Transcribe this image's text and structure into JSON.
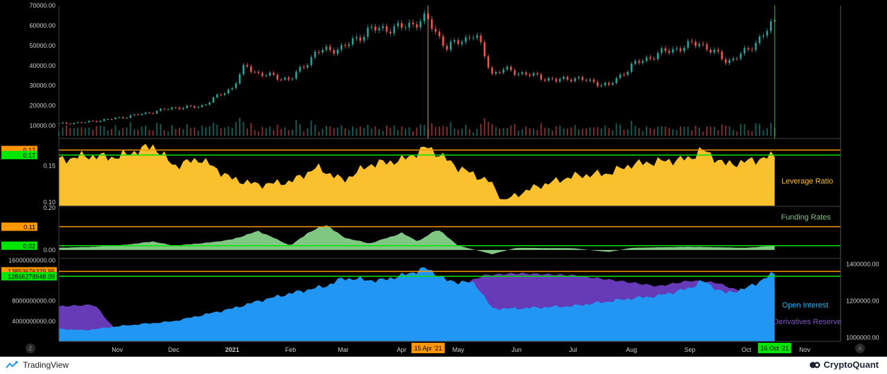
{
  "chart_data": {
    "type": "composite",
    "price_axis": {
      "ticks": [
        10000,
        20000,
        30000,
        40000,
        50000,
        60000,
        70000
      ],
      "tick_labels": [
        "10000.00",
        "20000.00",
        "30000.00",
        "40000.00",
        "50000.00",
        "60000.00",
        "70000.00"
      ],
      "range": [
        5000,
        70000
      ]
    },
    "price_series": {
      "type": "candlestick-approx",
      "dates": [
        "2020-10-01",
        "2020-10-15",
        "2020-11-01",
        "2020-11-15",
        "2020-12-01",
        "2020-12-15",
        "2021-01-01",
        "2021-01-08",
        "2021-01-15",
        "2021-02-01",
        "2021-02-15",
        "2021-03-01",
        "2021-03-15",
        "2021-04-01",
        "2021-04-14",
        "2021-04-25",
        "2021-05-10",
        "2021-05-19",
        "2021-05-25",
        "2021-06-10",
        "2021-06-22",
        "2021-07-01",
        "2021-07-20",
        "2021-08-01",
        "2021-08-15",
        "2021-09-06",
        "2021-09-21",
        "2021-10-01",
        "2021-10-16"
      ],
      "close": [
        11000,
        11700,
        13800,
        16000,
        19000,
        19500,
        29000,
        40000,
        36000,
        33000,
        47000,
        49000,
        58000,
        59000,
        63500,
        49000,
        56000,
        36000,
        38000,
        35000,
        32500,
        34000,
        30000,
        40000,
        46000,
        51500,
        42000,
        47000,
        61500
      ]
    },
    "leverage_ratio": {
      "label": "Leverage Ratio",
      "axis_ticks": [
        0.1,
        0.15
      ],
      "axis_tick_labels": [
        "0.10",
        "0.15"
      ],
      "range": [
        0.095,
        0.185
      ],
      "markers": [
        {
          "label": "0.17",
          "color": "#ff9800"
        },
        {
          "label": "0.17",
          "color": "#00e600"
        }
      ],
      "lines": [
        0.172,
        0.165
      ],
      "dates": [
        "2020-10-01",
        "2020-10-15",
        "2020-11-01",
        "2020-11-20",
        "2020-12-01",
        "2020-12-15",
        "2021-01-01",
        "2021-01-15",
        "2021-02-01",
        "2021-02-15",
        "2021-03-01",
        "2021-03-15",
        "2021-04-01",
        "2021-04-15",
        "2021-05-01",
        "2021-05-18",
        "2021-05-25",
        "2021-06-10",
        "2021-07-01",
        "2021-07-20",
        "2021-08-01",
        "2021-08-15",
        "2021-09-01",
        "2021-09-07",
        "2021-09-20",
        "2021-10-01",
        "2021-10-16"
      ],
      "values": [
        0.158,
        0.164,
        0.162,
        0.178,
        0.15,
        0.16,
        0.132,
        0.124,
        0.128,
        0.148,
        0.13,
        0.152,
        0.158,
        0.176,
        0.148,
        0.128,
        0.102,
        0.12,
        0.136,
        0.14,
        0.152,
        0.156,
        0.16,
        0.173,
        0.152,
        0.156,
        0.164
      ],
      "color": "#fbc02d"
    },
    "funding_rates": {
      "label": "Funding Rates",
      "axis_ticks": [
        0.0,
        0.2
      ],
      "axis_tick_labels": [
        "0.00",
        "0.20"
      ],
      "range": [
        -0.04,
        0.2
      ],
      "markers": [
        {
          "label": "0.11",
          "color": "#ff9800"
        },
        {
          "label": "0.02",
          "color": "#00e600"
        }
      ],
      "lines": [
        0.11,
        0.02
      ],
      "dates": [
        "2020-10-01",
        "2020-10-20",
        "2020-11-01",
        "2020-11-20",
        "2020-12-01",
        "2020-12-20",
        "2021-01-01",
        "2021-01-15",
        "2021-02-01",
        "2021-02-10",
        "2021-02-20",
        "2021-03-01",
        "2021-03-15",
        "2021-04-01",
        "2021-04-10",
        "2021-04-20",
        "2021-05-01",
        "2021-05-19",
        "2021-06-01",
        "2021-07-01",
        "2021-07-20",
        "2021-08-01",
        "2021-09-01",
        "2021-10-01",
        "2021-10-16"
      ],
      "values": [
        0.01,
        0.015,
        0.02,
        0.04,
        0.02,
        0.035,
        0.05,
        0.09,
        0.02,
        0.08,
        0.12,
        0.06,
        0.03,
        0.08,
        0.04,
        0.1,
        0.02,
        -0.02,
        0.01,
        0.008,
        -0.01,
        0.01,
        0.015,
        0.01,
        0.02
      ],
      "color": "#81c784"
    },
    "derivatives": {
      "left_axis_tick_labels": [
        "4000000000.00",
        "8000000000.00",
        "16000000000.00"
      ],
      "left_axis_ticks": [
        4000000000,
        8000000000,
        16000000000
      ],
      "left_range": [
        0,
        16000000000
      ],
      "right_axis_tick_labels": [
        "1000000.00",
        "1200000.00",
        "1400000.00"
      ],
      "right_axis_ticks": [
        1000000,
        1200000,
        1400000
      ],
      "right_range": [
        980000,
        1420000
      ],
      "markers": [
        {
          "label": "13853676329.95",
          "color": "#ff9800"
        },
        {
          "label": "12866278948.09",
          "color": "#00e600"
        }
      ],
      "lines": [
        13853676329.95,
        12866278948.09
      ],
      "series": [
        {
          "name": "Open Interest",
          "color": "#2196f3",
          "dates": [
            "2020-10-01",
            "2020-10-15",
            "2020-11-01",
            "2020-12-01",
            "2021-01-01",
            "2021-01-15",
            "2021-02-01",
            "2021-02-20",
            "2021-03-01",
            "2021-03-20",
            "2021-04-01",
            "2021-04-14",
            "2021-04-25",
            "2021-05-10",
            "2021-05-19",
            "2021-06-01",
            "2021-07-01",
            "2021-08-01",
            "2021-08-15",
            "2021-09-01",
            "2021-09-07",
            "2021-09-20",
            "2021-10-01",
            "2021-10-16"
          ],
          "values": [
            2500000000,
            2200000000,
            3000000000,
            4000000000,
            6500000000,
            8000000000,
            9500000000,
            11000000000,
            12500000000,
            12000000000,
            13000000000,
            14500000000,
            12000000000,
            11500000000,
            6500000000,
            6500000000,
            7000000000,
            8500000000,
            9000000000,
            10500000000,
            12000000000,
            9500000000,
            10500000000,
            13500000000
          ]
        },
        {
          "name": "Derivatives Reserve",
          "color": "#673ab7",
          "dates": [
            "2020-10-01",
            "2020-10-20",
            "2020-11-01",
            "2020-12-01",
            "2021-01-01",
            "2021-02-01",
            "2021-03-01",
            "2021-04-01",
            "2021-04-20",
            "2021-05-01",
            "2021-05-15",
            "2021-06-01",
            "2021-07-01",
            "2021-08-01",
            "2021-08-15",
            "2021-09-01",
            "2021-09-15",
            "2021-10-01",
            "2021-10-16"
          ],
          "values": [
            1170000,
            1180000,
            1030000,
            1020000,
            1090000,
            1160000,
            1230000,
            1260000,
            1270000,
            1280000,
            1340000,
            1350000,
            1340000,
            1300000,
            1280000,
            1310000,
            1300000,
            1240000,
            1290000
          ]
        }
      ]
    },
    "x_axis": {
      "ticks": [
        "2020-11-01",
        "2020-12-01",
        "2021-01-01",
        "2021-02-01",
        "2021-03-01",
        "2021-04-01",
        "2021-05-01",
        "2021-06-01",
        "2021-07-01",
        "2021-08-01",
        "2021-09-01",
        "2021-10-01",
        "2021-11-01"
      ],
      "tick_labels": [
        "Nov",
        "Dec",
        "2021",
        "Feb",
        "Mar",
        "Apr",
        "May",
        "Jun",
        "Jul",
        "Aug",
        "Sep",
        "Oct",
        "Nov"
      ],
      "range": [
        "2020-10-01",
        "2021-11-20"
      ],
      "highlights": [
        {
          "date": "2021-04-15",
          "label": "15 Apr '21",
          "color": "#ff9800"
        },
        {
          "date": "2021-10-16",
          "label": "16 Oct '21",
          "color": "#00e600"
        }
      ]
    }
  },
  "corner_buttons": {
    "left": "Z",
    "right": "A"
  },
  "brands": {
    "tradingview": "TradingView",
    "cryptoquant": "CryptoQuant"
  }
}
